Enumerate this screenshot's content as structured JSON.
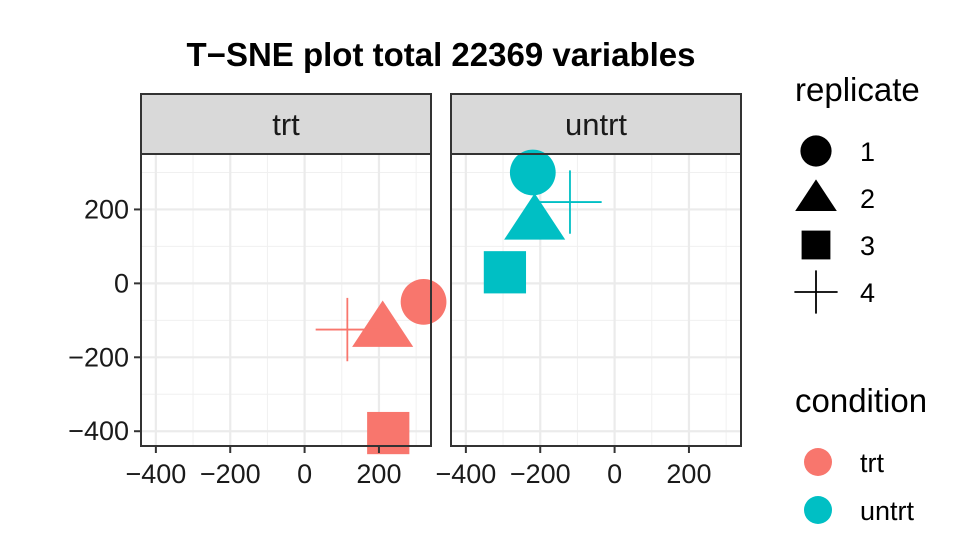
{
  "chart_data": {
    "type": "scatter",
    "title": "T−SNE plot total 22369 variables",
    "xlabel": "",
    "ylabel": "",
    "xlim": [
      -440,
      340
    ],
    "ylim": [
      -440,
      350
    ],
    "x_ticks": [
      -400,
      -200,
      0,
      200
    ],
    "x_tick_labels": [
      "−400",
      "−200",
      "0",
      "200"
    ],
    "y_ticks": [
      -400,
      -200,
      0,
      200
    ],
    "y_tick_labels": [
      "−400",
      "−200",
      "0",
      "200"
    ],
    "grid": true,
    "facet_labels": [
      "trt",
      "untrt"
    ],
    "legend_position": "right",
    "legends": {
      "replicate": {
        "title": "replicate",
        "items": [
          {
            "label": "1",
            "shape": "circle"
          },
          {
            "label": "2",
            "shape": "triangle"
          },
          {
            "label": "3",
            "shape": "square"
          },
          {
            "label": "4",
            "shape": "cross"
          }
        ]
      },
      "condition": {
        "title": "condition",
        "items": [
          {
            "label": "trt",
            "color": "#F8766D"
          },
          {
            "label": "untrt",
            "color": "#00BFC4"
          }
        ]
      }
    },
    "points": [
      {
        "facet": "trt",
        "condition": "trt",
        "replicate": "1",
        "x": 320,
        "y": -50
      },
      {
        "facet": "trt",
        "condition": "trt",
        "replicate": "2",
        "x": 210,
        "y": -120
      },
      {
        "facet": "trt",
        "condition": "trt",
        "replicate": "3",
        "x": 225,
        "y": -405
      },
      {
        "facet": "trt",
        "condition": "trt",
        "replicate": "4",
        "x": 115,
        "y": -125
      },
      {
        "facet": "untrt",
        "condition": "untrt",
        "replicate": "1",
        "x": -220,
        "y": 300
      },
      {
        "facet": "untrt",
        "condition": "untrt",
        "replicate": "2",
        "x": -215,
        "y": 170
      },
      {
        "facet": "untrt",
        "condition": "untrt",
        "replicate": "3",
        "x": -295,
        "y": 30
      },
      {
        "facet": "untrt",
        "condition": "untrt",
        "replicate": "4",
        "x": -120,
        "y": 220
      }
    ]
  }
}
